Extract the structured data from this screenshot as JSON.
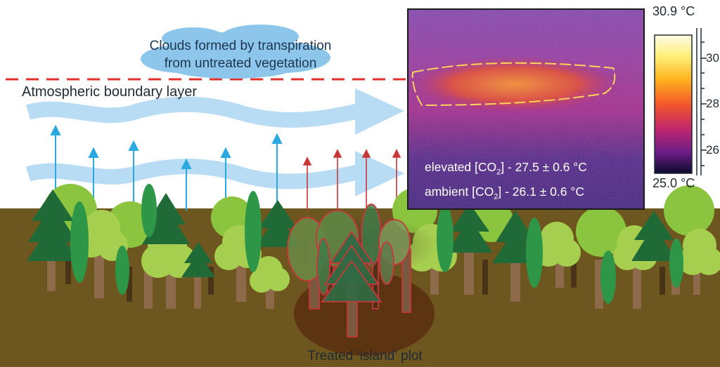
{
  "labels": {
    "clouds_line1": "Clouds formed by transpiration",
    "clouds_line2": "from untreated vegetation",
    "boundary_layer": "Atmospheric  boundary layer",
    "plot": "Treated ‘island’ plot"
  },
  "thermal_image": {
    "elevated_prefix": "elevated [CO",
    "elevated_sub": "2",
    "elevated_suffix": "] - 27.5 ± 0.6 °C",
    "ambient_prefix": "ambient [CO",
    "ambient_sub": "2",
    "ambient_suffix": "] - 26.1 ± 0.6 °C"
  },
  "color_scale": {
    "max_label": "30.9 °C",
    "min_label": "25.0 °C",
    "ticks": [
      "30",
      "28",
      "26"
    ]
  },
  "colors": {
    "arrows_blue": "#29a9e0",
    "arrows_red": "#c8373a",
    "boundary_line": "#e0312b",
    "ground": "#6e561f",
    "wind": "#b8dcf3",
    "cloud": "#8cc6ea"
  }
}
